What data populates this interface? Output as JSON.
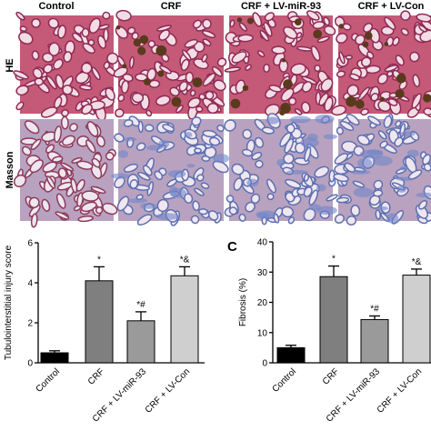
{
  "figure": {
    "column_headers": [
      "Control",
      "CRF",
      "CRF + LV-miR-93",
      "CRF + LV-Con"
    ],
    "row_labels": [
      "HE",
      "Masson"
    ]
  },
  "chart_data": [
    {
      "type": "bar",
      "ylabel": "Tubulointerstitial injury score",
      "categories": [
        "Control",
        "CRF",
        "CRF + LV-miR-93",
        "CRF + LV-Con"
      ],
      "values": [
        0.5,
        4.1,
        2.1,
        4.35
      ],
      "errors": [
        0.1,
        0.7,
        0.45,
        0.45
      ],
      "annotations": [
        null,
        "*",
        "*#",
        "*&"
      ],
      "colors": [
        "#000000",
        "#7f7f7f",
        "#9a9a9a",
        "#cfcfcf"
      ],
      "ylim": [
        0,
        6
      ],
      "yticks": [
        0,
        2,
        4,
        6
      ]
    },
    {
      "type": "bar",
      "panel_label": "C",
      "ylabel": "Fibrosis (%)",
      "categories": [
        "Control",
        "CRF",
        "CRF + LV-miR-93",
        "CRF + LV-Con"
      ],
      "values": [
        5,
        28.5,
        14.3,
        29
      ],
      "errors": [
        0.8,
        3.5,
        1.2,
        2
      ],
      "annotations": [
        null,
        "*",
        "*#",
        "*&"
      ],
      "colors": [
        "#000000",
        "#7f7f7f",
        "#9a9a9a",
        "#cfcfcf"
      ],
      "ylim": [
        0,
        40
      ],
      "yticks": [
        0,
        10,
        20,
        30,
        40
      ]
    }
  ]
}
